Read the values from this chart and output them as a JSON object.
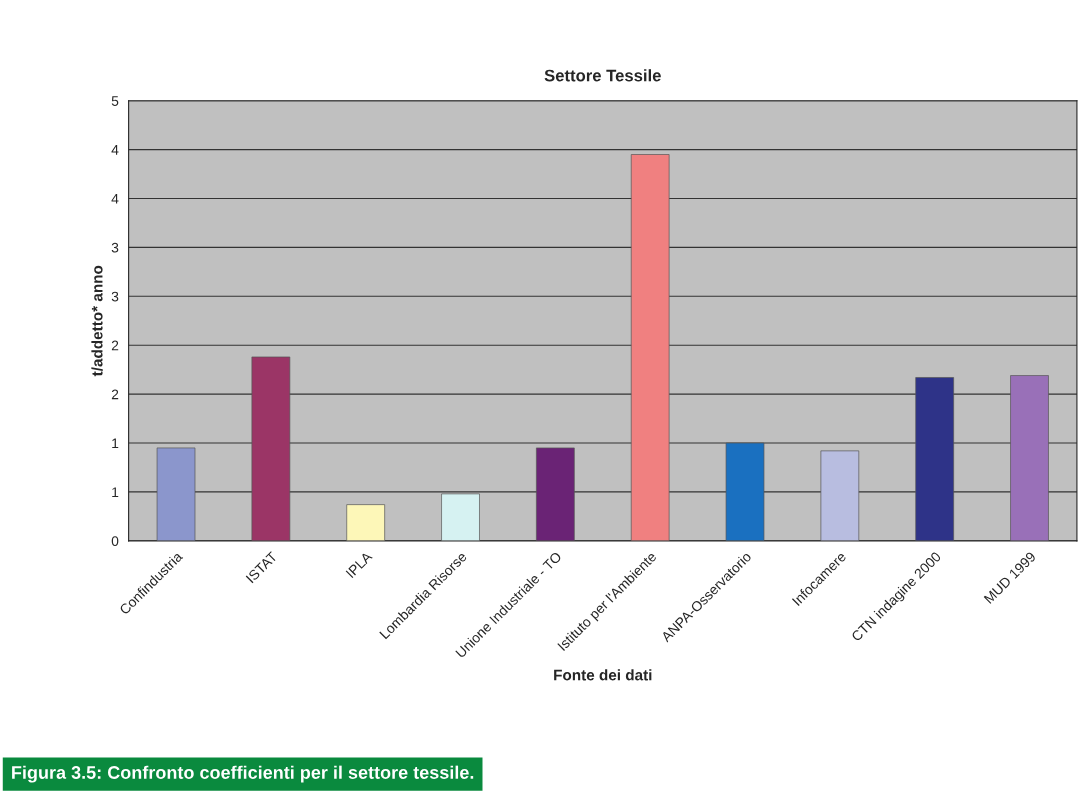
{
  "chart_data": {
    "type": "bar",
    "title": "Settore Tessile",
    "xlabel": "Fonte dei dati",
    "ylabel": "t/addetto* anno",
    "categories": [
      "Confindustria",
      "ISTAT",
      "IPLA",
      "Lombardia Risorse",
      "Unione Industriale - TO",
      "Istituto per l'Ambiente",
      "ANPA-Osservatorio",
      "Infocamere",
      "CTN indagine 2000",
      "MUD 1999"
    ],
    "values": [
      0.95,
      1.88,
      0.37,
      0.48,
      0.95,
      3.95,
      1.0,
      0.92,
      1.67,
      1.69
    ],
    "colors": [
      "#8b96cc",
      "#9b3566",
      "#fdf7b8",
      "#d6f2f2",
      "#6a2375",
      "#f08080",
      "#1a70c0",
      "#b8bde0",
      "#2e3388",
      "#9970b8"
    ],
    "ylim": [
      0,
      4.5
    ],
    "yticks": [
      0,
      {
        "value": 0.5,
        "label": "1"
      },
      {
        "value": 1.0,
        "label": "1"
      },
      {
        "value": 1.5,
        "label": "2"
      },
      {
        "value": 2.0,
        "label": "2"
      },
      {
        "value": 2.5,
        "label": "3"
      },
      {
        "value": 3.0,
        "label": "3"
      },
      {
        "value": 3.5,
        "label": "4"
      },
      {
        "value": 4.0,
        "label": "4"
      },
      {
        "value": 4.5,
        "label": "5"
      }
    ],
    "grid": "y",
    "annotations": [
      "Figura 3.5: Confronto coefficienti per il settore tessile."
    ]
  }
}
